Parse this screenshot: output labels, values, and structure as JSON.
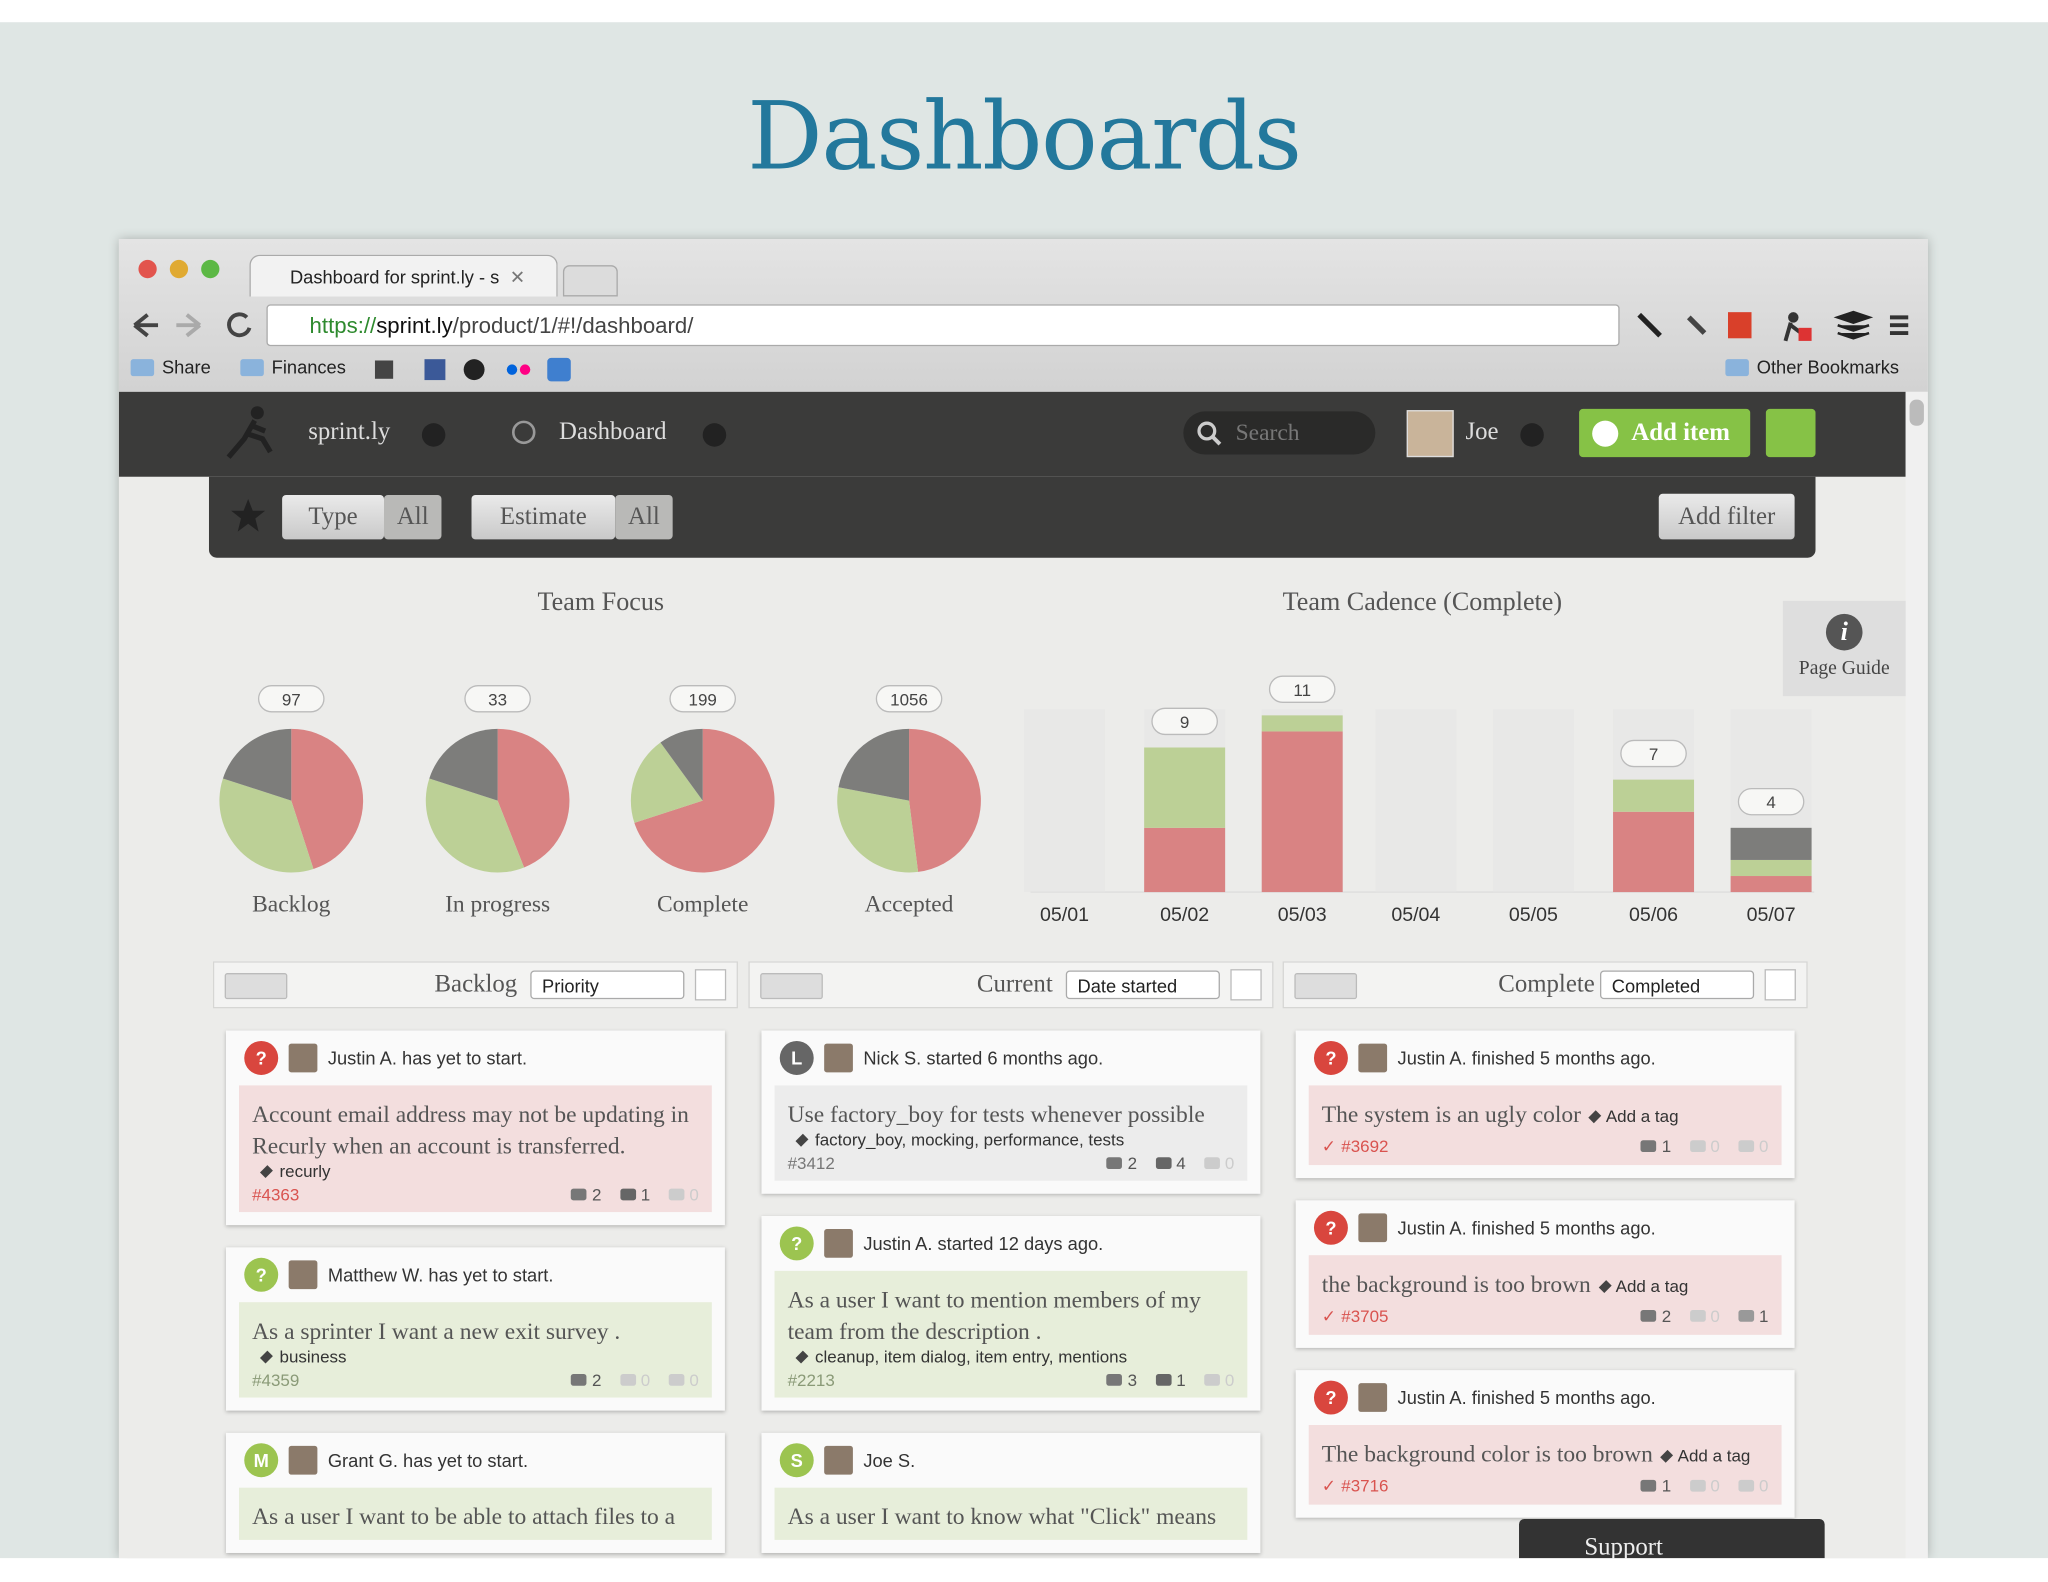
{
  "slide_title": "Dashboards",
  "browser": {
    "tab_title": "Dashboard for sprint.ly - s",
    "url_scheme": "https://",
    "url_host": "sprint.ly",
    "url_path": "/product/1/#!/dashboard/",
    "bookmarks": [
      "Share",
      "Finances"
    ],
    "other_bookmarks": "Other Bookmarks"
  },
  "app": {
    "brand": "sprint.ly",
    "section": "Dashboard",
    "search_placeholder": "Search",
    "user": "Joe",
    "add_item": "Add item",
    "filters": [
      {
        "label": "Type",
        "value": "All"
      },
      {
        "label": "Estimate",
        "value": "All"
      }
    ],
    "add_filter": "Add filter",
    "page_guide": "Page Guide",
    "support": "Support"
  },
  "team_focus": {
    "type": "pie",
    "title": "Team Focus",
    "colors": [
      "#d98383",
      "#bcd096",
      "#7d7d7b"
    ],
    "pies": [
      {
        "label": "Backlog",
        "count": 97,
        "shares": [
          45,
          35,
          20
        ]
      },
      {
        "label": "In progress",
        "count": 33,
        "shares": [
          44,
          36,
          20
        ]
      },
      {
        "label": "Complete",
        "count": 199,
        "shares": [
          70,
          20,
          10
        ]
      },
      {
        "label": "Accepted",
        "count": 1056,
        "shares": [
          48,
          30,
          22
        ]
      }
    ]
  },
  "team_cadence": {
    "type": "bar",
    "title": "Team Cadence (Complete)",
    "categories": [
      "05/01",
      "05/02",
      "05/03",
      "05/04",
      "05/05",
      "05/06",
      "05/07"
    ],
    "totals": [
      null,
      9,
      11,
      null,
      null,
      7,
      4
    ],
    "series": [
      {
        "color": "#d98383",
        "values": [
          0,
          4,
          10,
          0,
          0,
          5,
          1
        ]
      },
      {
        "color": "#bcd096",
        "values": [
          0,
          5,
          1,
          0,
          0,
          2,
          1
        ]
      },
      {
        "color": "#7d7d7b",
        "values": [
          0,
          0,
          0,
          0,
          0,
          0,
          2
        ]
      }
    ]
  },
  "columns": [
    {
      "title": "Backlog",
      "sort": "Priority",
      "cards": [
        {
          "badge": "?",
          "color": "red",
          "author": "Justin A. has yet to start.",
          "title": "Account email address may not be updating in Recurly when an account is transferred.",
          "tags": "recurly",
          "number": "#4363",
          "people": 2,
          "comments": 1,
          "likes": 0
        },
        {
          "badge": "?",
          "color": "green",
          "author": "Matthew W. has yet to start.",
          "title": "As a sprinter I want a new exit survey .",
          "tags": "business",
          "number": "#4359",
          "people": 2,
          "comments": 0,
          "likes": 0
        },
        {
          "badge": "M",
          "color": "green",
          "author": "Grant G. has yet to start.",
          "title": "As a user I want to be able to attach files to a"
        }
      ]
    },
    {
      "title": "Current",
      "sort": "Date started",
      "cards": [
        {
          "badge": "L",
          "color": "gray",
          "author": "Nick S. started 6 months ago.",
          "title": "Use factory_boy for tests whenever possible",
          "tags": "factory_boy, mocking, performance, tests",
          "number": "#3412",
          "people": 2,
          "comments": 4,
          "likes": 0
        },
        {
          "badge": "?",
          "color": "green",
          "author": "Justin A. started 12 days ago.",
          "title": "As a user I want to mention members of my team from the description .",
          "tags": "cleanup, item dialog, item entry, mentions",
          "number": "#2213",
          "people": 3,
          "comments": 1,
          "likes": 0
        },
        {
          "badge": "S",
          "color": "green",
          "author": "Joe S.",
          "title": "As a user I want to know what \"Click\" means"
        }
      ]
    },
    {
      "title": "Complete",
      "sort": "Completed",
      "cards": [
        {
          "badge": "?",
          "color": "red",
          "author": "Justin A. finished 5 months ago.",
          "title": "The system is an ugly color",
          "add_tag": "Add a tag",
          "number": "#3692",
          "people": 1,
          "comments": 0,
          "likes": 0
        },
        {
          "badge": "?",
          "color": "red",
          "author": "Justin A. finished 5 months ago.",
          "title": "the background is too brown",
          "add_tag": "Add a tag",
          "number": "#3705",
          "people": 2,
          "comments": 0,
          "likes": 1
        },
        {
          "badge": "?",
          "color": "red",
          "author": "Justin A. finished 5 months ago.",
          "title": "The background color is too brown",
          "add_tag": "Add a tag",
          "number": "#3716",
          "people": 1,
          "comments": 0,
          "likes": 0
        }
      ]
    }
  ]
}
